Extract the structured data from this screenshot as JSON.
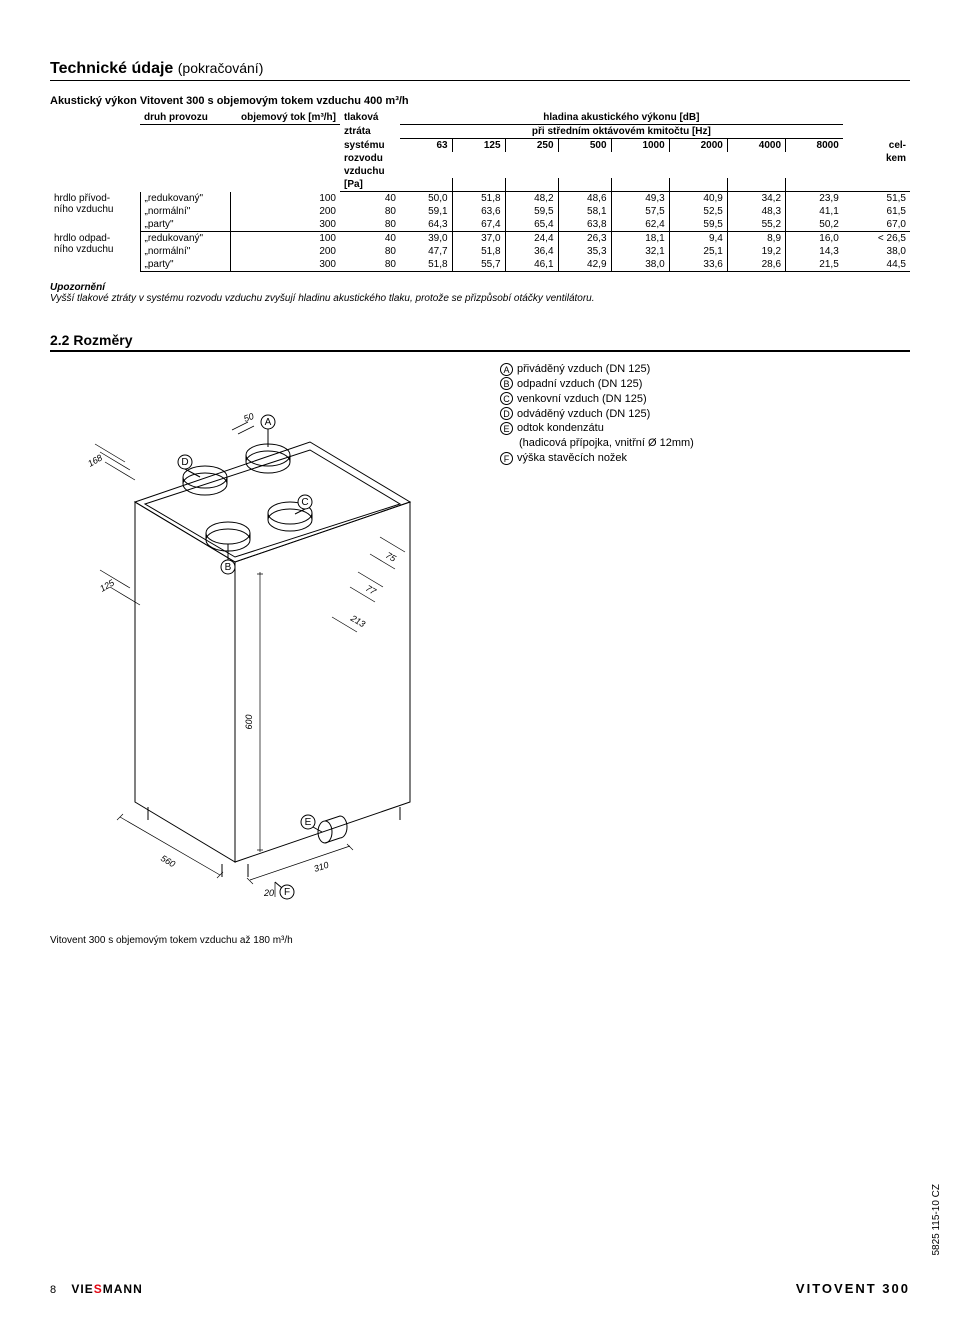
{
  "page": {
    "title": "Technické údaje",
    "title_sub": "(pokračování)",
    "number": "8",
    "brand": "VIESMANN",
    "product": "VITOVENT 300",
    "side_code": "5825 115-10 CZ"
  },
  "table": {
    "title": "Akustický výkon Vitovent 300 s objemovým tokem vzduchu 400 m³/h",
    "head": {
      "mode_label": "druh provozu",
      "flow_label": "objemový tok [m³/h]",
      "loss_label1": "tlaková",
      "loss_label2": "ztráta",
      "loss_label3": "systému",
      "loss_label4": "rozvodu",
      "loss_label5": "vzduchu",
      "loss_label6": "[Pa]",
      "level_label": "hladina akustického výkonu [dB]",
      "freq_label": "při středním oktávovém kmitočtu [Hz]",
      "total1": "cel-",
      "total2": "kem",
      "freqs": [
        "63",
        "125",
        "250",
        "500",
        "1000",
        "2000",
        "4000",
        "8000"
      ]
    },
    "group1": {
      "l1": "hrdlo přívod-",
      "l2": "ního vzduchu"
    },
    "group2": {
      "l1": "hrdlo odpad-",
      "l2": "ního vzduchu"
    },
    "rows": [
      {
        "mode": "„redukovaný\"",
        "flow": "100",
        "loss": "40",
        "v": [
          "50,0",
          "51,8",
          "48,2",
          "48,6",
          "49,3",
          "40,9",
          "34,2",
          "23,9"
        ],
        "tot": "51,5"
      },
      {
        "mode": "„normální\"",
        "flow": "200",
        "loss": "80",
        "v": [
          "59,1",
          "63,6",
          "59,5",
          "58,1",
          "57,5",
          "52,5",
          "48,3",
          "41,1"
        ],
        "tot": "61,5"
      },
      {
        "mode": "„party\"",
        "flow": "300",
        "loss": "80",
        "v": [
          "64,3",
          "67,4",
          "65,4",
          "63,8",
          "62,4",
          "59,5",
          "55,2",
          "50,2"
        ],
        "tot": "67,0"
      },
      {
        "mode": "„redukovaný\"",
        "flow": "100",
        "loss": "40",
        "v": [
          "39,0",
          "37,0",
          "24,4",
          "26,3",
          "18,1",
          "9,4",
          "8,9",
          "16,0"
        ],
        "tot": "< 26,5"
      },
      {
        "mode": "„normální\"",
        "flow": "200",
        "loss": "80",
        "v": [
          "47,7",
          "51,8",
          "36,4",
          "35,3",
          "32,1",
          "25,1",
          "19,2",
          "14,3"
        ],
        "tot": "38,0"
      },
      {
        "mode": "„party\"",
        "flow": "300",
        "loss": "80",
        "v": [
          "51,8",
          "55,7",
          "46,1",
          "42,9",
          "38,0",
          "33,6",
          "28,6",
          "21,5"
        ],
        "tot": "44,5"
      }
    ]
  },
  "note": {
    "head": "Upozornění",
    "text": "Vyšší tlakové ztráty v systému rozvodu vzduchu zvyšují hladinu akustického tlaku, protože se přizpůsobí otáčky ventilátoru."
  },
  "dims": {
    "heading": "2.2 Rozměry",
    "legend": {
      "A": "přiváděný vzduch (DN 125)",
      "B": "odpadní vzduch (DN 125)",
      "C": "venkovní vzduch (DN 125)",
      "D": "odváděný vzduch (DN 125)",
      "E": "odtok kondenzátu",
      "E2": "(hadicová přípojka, vnitřní Ø 12mm)",
      "F": "výška stavěcích nožek"
    },
    "caption": "Vitovent 300 s objemovým tokem vzduchu až 180 m³/h",
    "labels": {
      "d168": "168",
      "d125": "125",
      "d50": "50",
      "d75": "75",
      "d77": "77",
      "d213": "213",
      "d600": "600",
      "d560": "560",
      "d310": "310",
      "d20": "20",
      "A": "A",
      "B": "B",
      "C": "C",
      "D": "D",
      "E": "E",
      "F": "F"
    }
  }
}
